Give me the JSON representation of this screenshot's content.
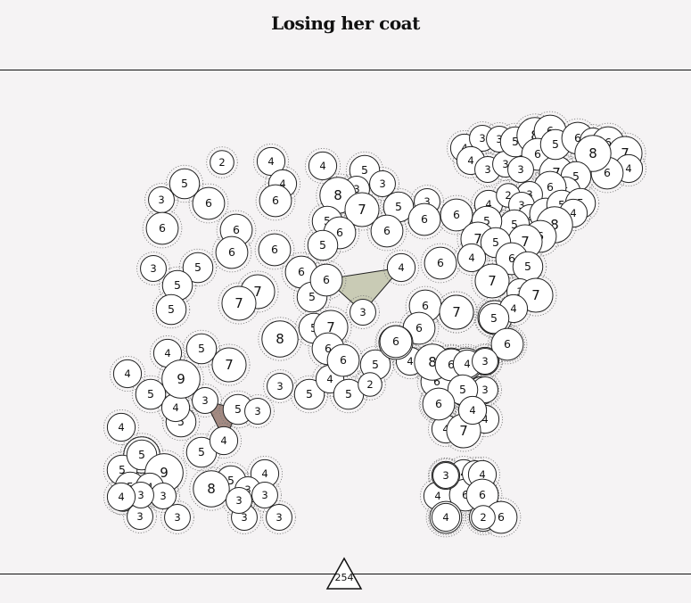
{
  "page": {
    "title": "Losing her coat",
    "page_number": "254"
  },
  "colors": {
    "background": "#f5f3f4",
    "circle_fill": "#ffffff",
    "circle_stroke": "#222222",
    "halo_stroke": "#777777",
    "shape_sage": "#c9cbb5",
    "shape_brown": "#a38a82"
  },
  "puzzle": {
    "numbers": [
      2,
      4,
      4,
      5,
      3,
      3,
      5,
      6,
      4,
      6,
      3,
      6,
      8,
      5,
      3,
      7,
      5,
      6,
      6,
      4,
      6,
      6,
      5,
      6,
      5,
      6,
      3,
      6,
      5,
      4,
      5,
      7,
      6,
      7,
      5,
      5,
      3,
      4,
      5,
      6,
      4,
      6,
      7,
      8,
      7,
      7,
      5,
      6,
      6,
      5,
      6,
      5,
      4,
      5,
      3,
      4,
      5,
      5,
      5,
      2,
      4,
      6,
      7,
      8,
      7,
      7,
      3,
      4,
      6,
      4,
      3,
      4,
      6,
      6,
      4,
      4,
      2,
      3,
      4,
      5,
      6,
      4,
      4,
      9,
      5,
      4,
      5,
      3,
      3,
      5,
      5,
      4,
      4,
      7,
      4,
      5,
      9,
      4,
      4,
      6,
      4,
      6,
      2,
      3,
      4,
      8,
      3,
      3,
      3,
      3,
      3,
      3,
      3,
      4,
      6,
      4,
      4,
      6,
      4,
      3,
      2,
      4,
      3,
      3,
      4,
      3,
      3,
      5,
      8,
      6,
      6,
      7,
      3,
      5,
      6,
      3,
      6,
      7,
      4,
      6,
      8,
      5,
      5,
      6,
      3,
      2,
      3,
      4,
      5,
      6,
      5,
      5,
      4,
      8,
      6,
      7,
      5,
      7,
      5,
      4,
      6,
      5,
      7,
      3,
      7,
      4,
      5,
      6,
      7,
      8,
      6,
      6,
      4,
      3,
      5,
      6,
      4,
      6,
      5
    ]
  }
}
